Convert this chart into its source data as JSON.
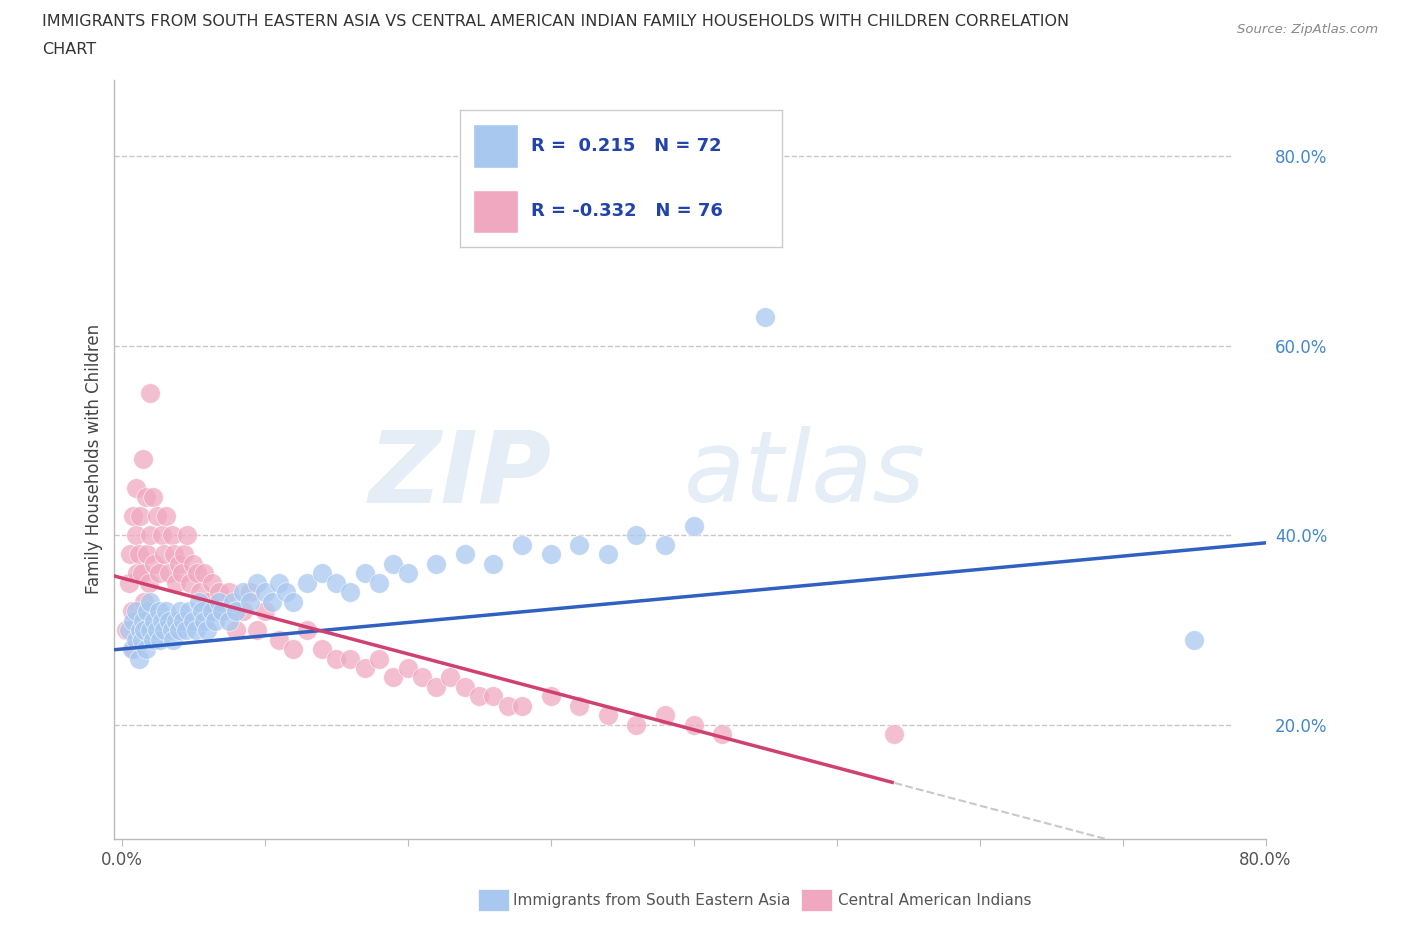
{
  "title_line1": "IMMIGRANTS FROM SOUTH EASTERN ASIA VS CENTRAL AMERICAN INDIAN FAMILY HOUSEHOLDS WITH CHILDREN CORRELATION",
  "title_line2": "CHART",
  "source_text": "Source: ZipAtlas.com",
  "ylabel": "Family Households with Children",
  "blue_color": "#a8c8f0",
  "pink_color": "#f0a8c0",
  "blue_line_color": "#3060c0",
  "pink_line_color": "#d04070",
  "dashed_line_color": "#c8c8c8",
  "legend_R1": "0.215",
  "legend_N1": "72",
  "legend_R2": "-0.332",
  "legend_N2": "76",
  "legend_label1": "Immigrants from South Eastern Asia",
  "legend_label2": "Central American Indians",
  "legend_text_color": "#2244aa",
  "tick_label_color": "#4488cc",
  "background_color": "#ffffff",
  "blue_scatter_x": [
    0.005,
    0.007,
    0.008,
    0.01,
    0.01,
    0.012,
    0.013,
    0.014,
    0.015,
    0.016,
    0.017,
    0.018,
    0.02,
    0.02,
    0.022,
    0.023,
    0.025,
    0.026,
    0.027,
    0.028,
    0.03,
    0.031,
    0.033,
    0.035,
    0.036,
    0.038,
    0.04,
    0.041,
    0.043,
    0.045,
    0.047,
    0.05,
    0.052,
    0.054,
    0.056,
    0.058,
    0.06,
    0.063,
    0.065,
    0.068,
    0.07,
    0.075,
    0.078,
    0.08,
    0.085,
    0.09,
    0.095,
    0.1,
    0.105,
    0.11,
    0.115,
    0.12,
    0.13,
    0.14,
    0.15,
    0.16,
    0.17,
    0.18,
    0.19,
    0.2,
    0.22,
    0.24,
    0.26,
    0.28,
    0.3,
    0.32,
    0.34,
    0.36,
    0.38,
    0.4,
    0.45,
    0.75
  ],
  "blue_scatter_y": [
    0.3,
    0.28,
    0.31,
    0.29,
    0.32,
    0.27,
    0.3,
    0.29,
    0.31,
    0.3,
    0.28,
    0.32,
    0.3,
    0.33,
    0.29,
    0.31,
    0.3,
    0.32,
    0.29,
    0.31,
    0.3,
    0.32,
    0.31,
    0.3,
    0.29,
    0.31,
    0.3,
    0.32,
    0.31,
    0.3,
    0.32,
    0.31,
    0.3,
    0.33,
    0.32,
    0.31,
    0.3,
    0.32,
    0.31,
    0.33,
    0.32,
    0.31,
    0.33,
    0.32,
    0.34,
    0.33,
    0.35,
    0.34,
    0.33,
    0.35,
    0.34,
    0.33,
    0.35,
    0.36,
    0.35,
    0.34,
    0.36,
    0.35,
    0.37,
    0.36,
    0.37,
    0.38,
    0.37,
    0.39,
    0.38,
    0.39,
    0.38,
    0.4,
    0.39,
    0.41,
    0.63,
    0.29
  ],
  "pink_scatter_x": [
    0.003,
    0.005,
    0.006,
    0.007,
    0.008,
    0.009,
    0.01,
    0.01,
    0.011,
    0.012,
    0.013,
    0.014,
    0.015,
    0.016,
    0.017,
    0.018,
    0.019,
    0.02,
    0.02,
    0.022,
    0.023,
    0.025,
    0.026,
    0.028,
    0.03,
    0.031,
    0.033,
    0.035,
    0.037,
    0.038,
    0.04,
    0.042,
    0.044,
    0.046,
    0.048,
    0.05,
    0.053,
    0.055,
    0.058,
    0.06,
    0.063,
    0.065,
    0.068,
    0.07,
    0.075,
    0.08,
    0.085,
    0.09,
    0.095,
    0.1,
    0.11,
    0.12,
    0.13,
    0.14,
    0.15,
    0.16,
    0.17,
    0.18,
    0.19,
    0.2,
    0.21,
    0.22,
    0.23,
    0.24,
    0.25,
    0.26,
    0.27,
    0.28,
    0.3,
    0.32,
    0.34,
    0.36,
    0.38,
    0.4,
    0.42,
    0.54
  ],
  "pink_scatter_y": [
    0.3,
    0.35,
    0.38,
    0.32,
    0.42,
    0.28,
    0.4,
    0.45,
    0.36,
    0.38,
    0.42,
    0.36,
    0.48,
    0.33,
    0.44,
    0.38,
    0.35,
    0.55,
    0.4,
    0.44,
    0.37,
    0.42,
    0.36,
    0.4,
    0.38,
    0.42,
    0.36,
    0.4,
    0.38,
    0.35,
    0.37,
    0.36,
    0.38,
    0.4,
    0.35,
    0.37,
    0.36,
    0.34,
    0.36,
    0.33,
    0.35,
    0.32,
    0.34,
    0.32,
    0.34,
    0.3,
    0.32,
    0.34,
    0.3,
    0.32,
    0.29,
    0.28,
    0.3,
    0.28,
    0.27,
    0.27,
    0.26,
    0.27,
    0.25,
    0.26,
    0.25,
    0.24,
    0.25,
    0.24,
    0.23,
    0.23,
    0.22,
    0.22,
    0.23,
    0.22,
    0.21,
    0.2,
    0.21,
    0.2,
    0.19,
    0.19
  ],
  "xlim": [
    -0.005,
    0.8
  ],
  "ylim": [
    0.08,
    0.88
  ],
  "xtick_vals": [
    0.0,
    0.1,
    0.2,
    0.3,
    0.4,
    0.5,
    0.6,
    0.7,
    0.8
  ],
  "ytick_vals": [
    0.2,
    0.4,
    0.6,
    0.8
  ]
}
